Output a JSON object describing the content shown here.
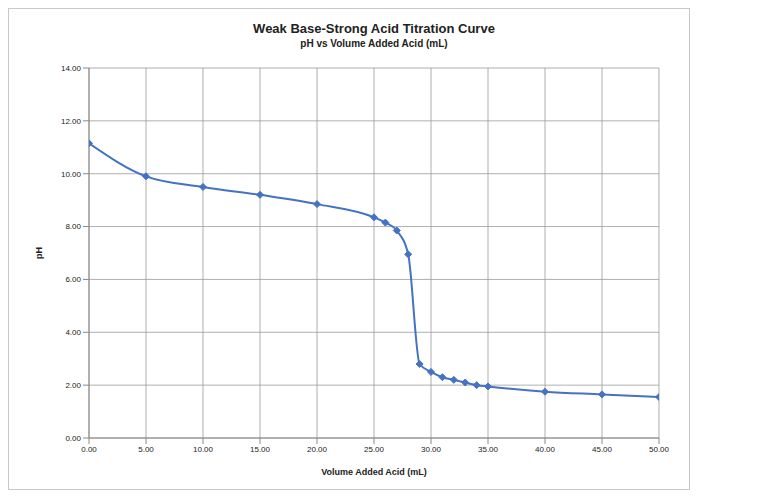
{
  "chart_data": {
    "type": "line",
    "title": "Weak Base-Strong Acid Titration Curve",
    "subtitle": "pH vs Volume Added Acid (mL)",
    "x_label": "Volume Added Acid (mL)",
    "y_label": "pH",
    "x": [
      0,
      5,
      10,
      15,
      20,
      25,
      26,
      27,
      28,
      29,
      30,
      31,
      32,
      33,
      34,
      35,
      40,
      45,
      50
    ],
    "values": [
      11.15,
      9.9,
      9.5,
      9.2,
      8.85,
      8.35,
      8.15,
      7.85,
      6.95,
      2.8,
      2.5,
      2.3,
      2.2,
      2.1,
      2.0,
      1.95,
      1.75,
      1.65,
      1.55
    ],
    "color": "#4472c4",
    "marker": "diamond",
    "line_style": "solid",
    "xlim": [
      0,
      50
    ],
    "xticks": [
      {
        "value": 0,
        "label": "0.00"
      },
      {
        "value": 5,
        "label": "5.00"
      },
      {
        "value": 10,
        "label": "10.00"
      },
      {
        "value": 15,
        "label": "15.00"
      },
      {
        "value": 20,
        "label": "20.00"
      },
      {
        "value": 25,
        "label": "25.00"
      },
      {
        "value": 30,
        "label": "30.00"
      },
      {
        "value": 35,
        "label": "35.00"
      },
      {
        "value": 40,
        "label": "40.00"
      },
      {
        "value": 45,
        "label": "45.00"
      },
      {
        "value": 50,
        "label": "50.00"
      }
    ],
    "ylim": [
      0,
      14
    ],
    "yticks": [
      {
        "value": 0,
        "label": "0.00"
      },
      {
        "value": 2,
        "label": "2.00"
      },
      {
        "value": 4,
        "label": "4.00"
      },
      {
        "value": 6,
        "label": "6.00"
      },
      {
        "value": 8,
        "label": "8.00"
      },
      {
        "value": 10,
        "label": "10.00"
      },
      {
        "value": 12,
        "label": "12.00"
      },
      {
        "value": 14,
        "label": "14.00"
      }
    ],
    "grid": true
  }
}
